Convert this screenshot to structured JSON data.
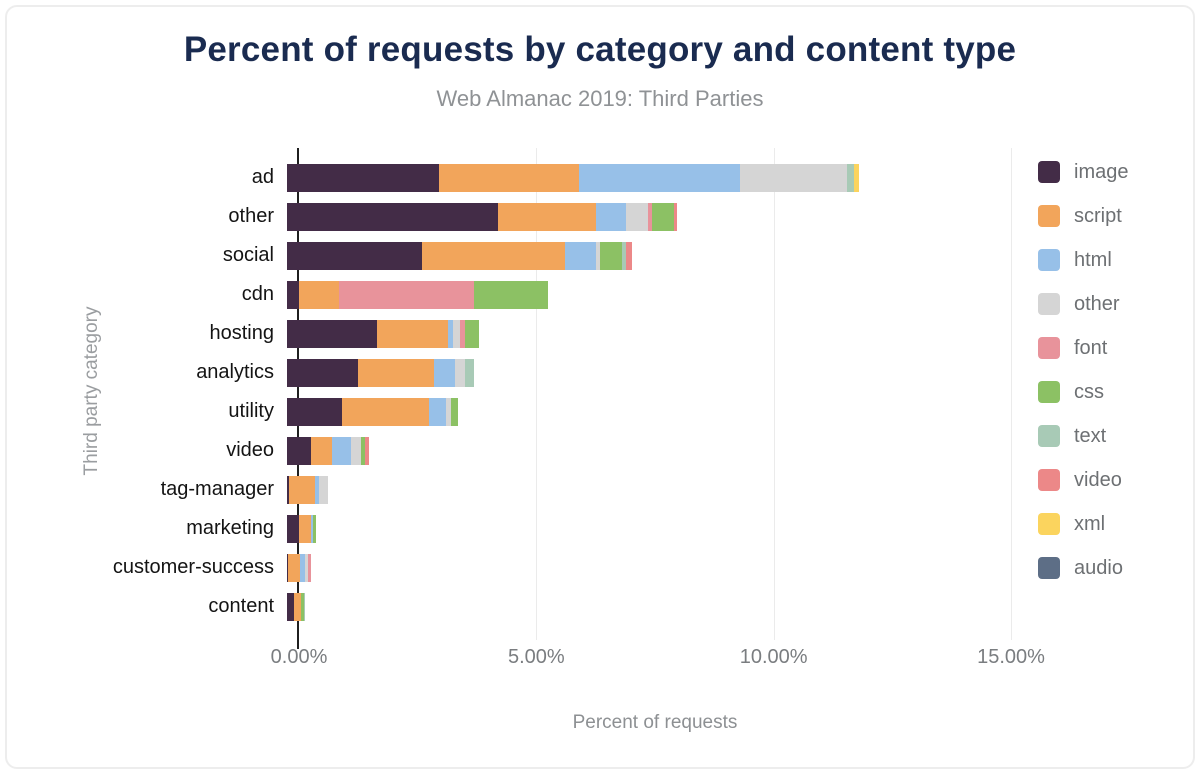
{
  "header": {
    "title": "Percent of requests by category and content type",
    "subtitle": "Web Almanac 2019: Third Parties"
  },
  "chart_data": {
    "type": "bar",
    "orientation": "horizontal",
    "stacked": true,
    "title": "Percent of requests by category and content type",
    "subtitle": "Web Almanac 2019: Third Parties",
    "xlabel": "Percent of requests",
    "ylabel": "Third party category",
    "xlim": [
      0,
      15
    ],
    "x_ticks": [
      "0.00%",
      "5.00%",
      "10.00%",
      "15.00%"
    ],
    "x_tick_values": [
      0,
      5,
      10,
      15
    ],
    "grid": true,
    "legend_position": "right",
    "categories": [
      "ad",
      "other",
      "social",
      "cdn",
      "hosting",
      "analytics",
      "utility",
      "video",
      "tag-manager",
      "marketing",
      "customer-success",
      "content"
    ],
    "series": [
      {
        "name": "image",
        "color": "#432c47",
        "values": [
          3.2,
          4.45,
          2.85,
          0.25,
          1.9,
          1.5,
          1.15,
          0.5,
          0.05,
          0.25,
          0.03,
          0.15
        ]
      },
      {
        "name": "script",
        "color": "#f2a55b",
        "values": [
          2.95,
          2.05,
          3.0,
          0.85,
          1.5,
          1.6,
          1.85,
          0.45,
          0.55,
          0.25,
          0.25,
          0.15
        ]
      },
      {
        "name": "html",
        "color": "#97c0e8",
        "values": [
          3.4,
          0.65,
          0.65,
          0.0,
          0.1,
          0.45,
          0.35,
          0.4,
          0.07,
          0.05,
          0.1,
          0.0
        ]
      },
      {
        "name": "other",
        "color": "#d5d5d5",
        "values": [
          2.25,
          0.45,
          0.1,
          0.0,
          0.15,
          0.2,
          0.1,
          0.2,
          0.2,
          0.0,
          0.07,
          0.0
        ]
      },
      {
        "name": "font",
        "color": "#e8939b",
        "values": [
          0.0,
          0.1,
          0.0,
          2.85,
          0.1,
          0.0,
          0.0,
          0.0,
          0.0,
          0.0,
          0.05,
          0.0
        ]
      },
      {
        "name": "css",
        "color": "#8cc164",
        "values": [
          0.0,
          0.45,
          0.45,
          1.55,
          0.3,
          0.0,
          0.15,
          0.1,
          0.0,
          0.07,
          0.0,
          0.05
        ]
      },
      {
        "name": "text",
        "color": "#a8cab6",
        "values": [
          0.15,
          0.0,
          0.1,
          0.0,
          0.0,
          0.2,
          0.0,
          0.0,
          0.0,
          0.0,
          0.0,
          0.03
        ]
      },
      {
        "name": "video",
        "color": "#ec8888",
        "values": [
          0.0,
          0.07,
          0.13,
          0.0,
          0.0,
          0.0,
          0.0,
          0.07,
          0.0,
          0.0,
          0.0,
          0.0
        ]
      },
      {
        "name": "xml",
        "color": "#fbd45e",
        "values": [
          0.1,
          0.0,
          0.0,
          0.0,
          0.0,
          0.0,
          0.0,
          0.0,
          0.0,
          0.0,
          0.0,
          0.0
        ]
      },
      {
        "name": "audio",
        "color": "#5d6e86",
        "values": [
          0.0,
          0.0,
          0.0,
          0.0,
          0.0,
          0.0,
          0.0,
          0.0,
          0.0,
          0.0,
          0.0,
          0.0
        ]
      }
    ]
  },
  "colors": {
    "title": "#1a2b50",
    "subtitle": "#8f9295",
    "axis_line": "#1f1f1f",
    "gridline": "#ebebeb"
  }
}
